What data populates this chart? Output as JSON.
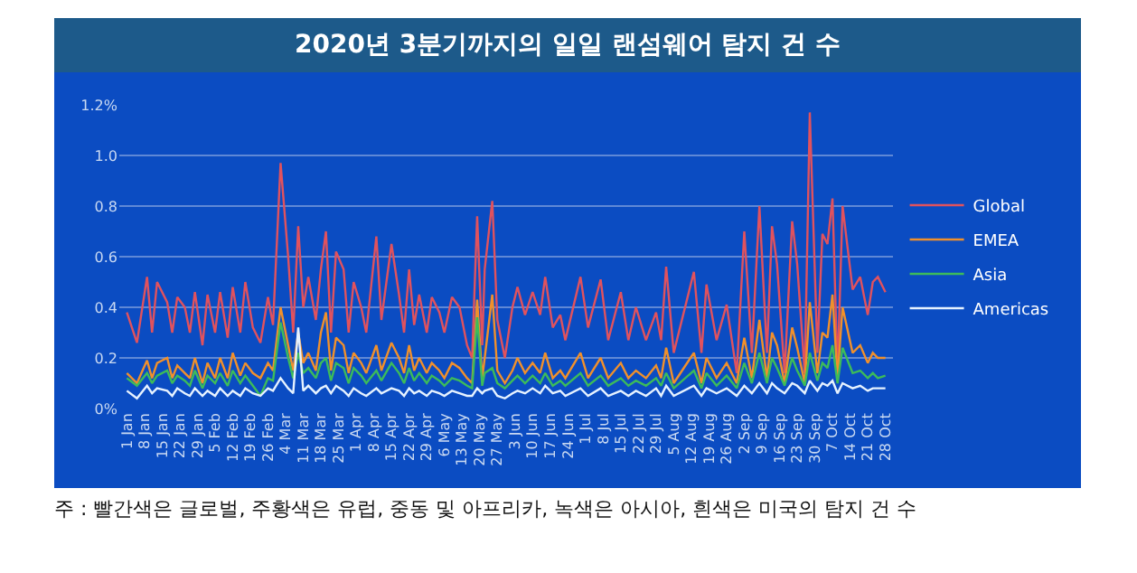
{
  "chart_data": {
    "type": "line",
    "title": "2020년 3분기까지의 일일 랜섬웨어 탐지 건 수",
    "annotations": [
      "주 : 빨간색은 글로벌, 주황색은 유럽, 중동 및 아프리카, 녹색은 아시아, 흰색은 미국의 탐지 건 수"
    ],
    "x": [
      "2020-01-01",
      "2020-01-05",
      "2020-01-09",
      "2020-01-11",
      "2020-01-13",
      "2020-01-17",
      "2020-01-19",
      "2020-01-21",
      "2020-01-24",
      "2020-01-26",
      "2020-01-28",
      "2020-01-31",
      "2020-02-02",
      "2020-02-05",
      "2020-02-07",
      "2020-02-10",
      "2020-02-12",
      "2020-02-15",
      "2020-02-17",
      "2020-02-20",
      "2020-02-23",
      "2020-02-26",
      "2020-02-28",
      "2020-03-02",
      "2020-03-05",
      "2020-03-07",
      "2020-03-09",
      "2020-03-11",
      "2020-03-13",
      "2020-03-16",
      "2020-03-18",
      "2020-03-20",
      "2020-03-22",
      "2020-03-24",
      "2020-03-27",
      "2020-03-29",
      "2020-03-31",
      "2020-04-03",
      "2020-04-05",
      "2020-04-09",
      "2020-04-11",
      "2020-04-15",
      "2020-04-18",
      "2020-04-20",
      "2020-04-22",
      "2020-04-24",
      "2020-04-26",
      "2020-04-29",
      "2020-05-01",
      "2020-05-04",
      "2020-05-06",
      "2020-05-09",
      "2020-05-12",
      "2020-05-15",
      "2020-05-17",
      "2020-05-19",
      "2020-05-21",
      "2020-05-22",
      "2020-05-25",
      "2020-05-27",
      "2020-05-30",
      "2020-06-02",
      "2020-06-04",
      "2020-06-07",
      "2020-06-10",
      "2020-06-13",
      "2020-06-15",
      "2020-06-18",
      "2020-06-21",
      "2020-06-23",
      "2020-06-29",
      "2020-07-02",
      "2020-07-07",
      "2020-07-10",
      "2020-07-15",
      "2020-07-18",
      "2020-07-21",
      "2020-07-25",
      "2020-07-29",
      "2020-07-31",
      "2020-08-02",
      "2020-08-05",
      "2020-08-13",
      "2020-08-16",
      "2020-08-18",
      "2020-08-22",
      "2020-08-26",
      "2020-08-30",
      "2020-09-02",
      "2020-09-05",
      "2020-09-08",
      "2020-09-11",
      "2020-09-13",
      "2020-09-15",
      "2020-09-18",
      "2020-09-21",
      "2020-09-23",
      "2020-09-26",
      "2020-09-28",
      "2020-10-01",
      "2020-10-03",
      "2020-10-05",
      "2020-10-07",
      "2020-10-09",
      "2020-10-11",
      "2020-10-15",
      "2020-10-18",
      "2020-10-21",
      "2020-10-23",
      "2020-10-25",
      "2020-10-28"
    ],
    "series": [
      {
        "name": "Global",
        "color": "#e0525e",
        "values": [
          0.38,
          0.26,
          0.52,
          0.3,
          0.5,
          0.42,
          0.3,
          0.44,
          0.4,
          0.3,
          0.46,
          0.25,
          0.45,
          0.3,
          0.46,
          0.28,
          0.48,
          0.3,
          0.5,
          0.32,
          0.26,
          0.44,
          0.33,
          0.97,
          0.6,
          0.3,
          0.72,
          0.4,
          0.52,
          0.35,
          0.55,
          0.7,
          0.3,
          0.62,
          0.55,
          0.3,
          0.5,
          0.4,
          0.3,
          0.68,
          0.35,
          0.65,
          0.45,
          0.3,
          0.55,
          0.33,
          0.45,
          0.3,
          0.44,
          0.38,
          0.3,
          0.44,
          0.4,
          0.25,
          0.2,
          0.76,
          0.25,
          0.55,
          0.82,
          0.35,
          0.2,
          0.4,
          0.48,
          0.37,
          0.46,
          0.37,
          0.52,
          0.32,
          0.37,
          0.27,
          0.52,
          0.32,
          0.51,
          0.27,
          0.46,
          0.27,
          0.4,
          0.27,
          0.38,
          0.27,
          0.56,
          0.22,
          0.54,
          0.22,
          0.49,
          0.27,
          0.41,
          0.14,
          0.7,
          0.22,
          0.8,
          0.22,
          0.72,
          0.57,
          0.14,
          0.74,
          0.57,
          0.14,
          1.17,
          0.22,
          0.69,
          0.65,
          0.83,
          0.14,
          0.8,
          0.47,
          0.52,
          0.37,
          0.5,
          0.52,
          0.46
        ]
      },
      {
        "name": "EMEA",
        "color": "#f0902c",
        "values": [
          0.14,
          0.1,
          0.19,
          0.12,
          0.18,
          0.2,
          0.12,
          0.17,
          0.14,
          0.12,
          0.2,
          0.1,
          0.18,
          0.12,
          0.2,
          0.12,
          0.22,
          0.13,
          0.18,
          0.14,
          0.12,
          0.18,
          0.15,
          0.4,
          0.25,
          0.15,
          0.3,
          0.18,
          0.22,
          0.15,
          0.3,
          0.38,
          0.15,
          0.28,
          0.25,
          0.14,
          0.22,
          0.18,
          0.14,
          0.25,
          0.15,
          0.26,
          0.2,
          0.14,
          0.25,
          0.15,
          0.2,
          0.14,
          0.18,
          0.15,
          0.12,
          0.18,
          0.16,
          0.12,
          0.1,
          0.43,
          0.12,
          0.2,
          0.45,
          0.15,
          0.1,
          0.15,
          0.2,
          0.14,
          0.18,
          0.14,
          0.22,
          0.12,
          0.15,
          0.12,
          0.22,
          0.12,
          0.2,
          0.12,
          0.18,
          0.12,
          0.15,
          0.12,
          0.17,
          0.12,
          0.24,
          0.1,
          0.22,
          0.1,
          0.2,
          0.12,
          0.18,
          0.1,
          0.28,
          0.12,
          0.35,
          0.12,
          0.3,
          0.25,
          0.1,
          0.32,
          0.24,
          0.1,
          0.42,
          0.14,
          0.3,
          0.28,
          0.45,
          0.12,
          0.4,
          0.22,
          0.25,
          0.18,
          0.22,
          0.2,
          0.2
        ]
      },
      {
        "name": "Asia",
        "color": "#3dbb5a",
        "values": [
          0.12,
          0.09,
          0.14,
          0.1,
          0.13,
          0.15,
          0.1,
          0.13,
          0.11,
          0.09,
          0.15,
          0.08,
          0.13,
          0.1,
          0.14,
          0.09,
          0.15,
          0.1,
          0.13,
          0.09,
          0.05,
          0.12,
          0.11,
          0.34,
          0.2,
          0.12,
          0.22,
          0.14,
          0.16,
          0.12,
          0.18,
          0.2,
          0.11,
          0.18,
          0.16,
          0.1,
          0.16,
          0.13,
          0.1,
          0.15,
          0.11,
          0.18,
          0.14,
          0.1,
          0.16,
          0.11,
          0.14,
          0.1,
          0.13,
          0.11,
          0.09,
          0.12,
          0.11,
          0.09,
          0.08,
          0.36,
          0.09,
          0.14,
          0.16,
          0.1,
          0.08,
          0.11,
          0.13,
          0.1,
          0.13,
          0.1,
          0.14,
          0.09,
          0.11,
          0.09,
          0.14,
          0.09,
          0.13,
          0.09,
          0.12,
          0.09,
          0.11,
          0.09,
          0.12,
          0.09,
          0.14,
          0.08,
          0.15,
          0.08,
          0.14,
          0.09,
          0.13,
          0.08,
          0.18,
          0.1,
          0.22,
          0.1,
          0.2,
          0.16,
          0.09,
          0.2,
          0.15,
          0.09,
          0.22,
          0.11,
          0.18,
          0.16,
          0.25,
          0.1,
          0.24,
          0.14,
          0.15,
          0.12,
          0.14,
          0.12,
          0.13
        ]
      },
      {
        "name": "Americas",
        "color": "#e6f2ff",
        "values": [
          0.07,
          0.04,
          0.09,
          0.06,
          0.08,
          0.07,
          0.05,
          0.08,
          0.06,
          0.05,
          0.08,
          0.05,
          0.07,
          0.05,
          0.08,
          0.05,
          0.07,
          0.05,
          0.08,
          0.06,
          0.05,
          0.08,
          0.07,
          0.12,
          0.08,
          0.06,
          0.32,
          0.07,
          0.09,
          0.06,
          0.08,
          0.09,
          0.06,
          0.09,
          0.07,
          0.05,
          0.08,
          0.06,
          0.05,
          0.08,
          0.06,
          0.08,
          0.07,
          0.05,
          0.08,
          0.06,
          0.07,
          0.05,
          0.07,
          0.06,
          0.05,
          0.07,
          0.06,
          0.05,
          0.05,
          0.08,
          0.06,
          0.07,
          0.08,
          0.05,
          0.04,
          0.06,
          0.07,
          0.06,
          0.08,
          0.06,
          0.09,
          0.06,
          0.07,
          0.05,
          0.08,
          0.05,
          0.08,
          0.05,
          0.07,
          0.05,
          0.07,
          0.05,
          0.08,
          0.05,
          0.09,
          0.05,
          0.09,
          0.05,
          0.08,
          0.06,
          0.08,
          0.05,
          0.09,
          0.06,
          0.1,
          0.06,
          0.1,
          0.08,
          0.06,
          0.1,
          0.09,
          0.06,
          0.11,
          0.07,
          0.1,
          0.09,
          0.11,
          0.06,
          0.1,
          0.08,
          0.09,
          0.07,
          0.08,
          0.08,
          0.08
        ]
      }
    ],
    "xlim": [
      "2019-12-29",
      "2020-10-31"
    ],
    "xticks": [
      {
        "value": "2020-01-01",
        "label": "1 Jan"
      },
      {
        "value": "2020-01-08",
        "label": "8 Jan"
      },
      {
        "value": "2020-01-15",
        "label": "15 Jan"
      },
      {
        "value": "2020-01-22",
        "label": "22 Jan"
      },
      {
        "value": "2020-01-29",
        "label": "29 Jan"
      },
      {
        "value": "2020-02-05",
        "label": "5 Feb"
      },
      {
        "value": "2020-02-12",
        "label": "12 Feb"
      },
      {
        "value": "2020-02-19",
        "label": "19 Feb"
      },
      {
        "value": "2020-02-26",
        "label": "26 Feb"
      },
      {
        "value": "2020-03-04",
        "label": "4 Mar"
      },
      {
        "value": "2020-03-11",
        "label": "11 Mar"
      },
      {
        "value": "2020-03-18",
        "label": "18 Mar"
      },
      {
        "value": "2020-03-25",
        "label": "25 Mar"
      },
      {
        "value": "2020-04-01",
        "label": "1 Apr"
      },
      {
        "value": "2020-04-08",
        "label": "8 Apr"
      },
      {
        "value": "2020-04-15",
        "label": "15 Apr"
      },
      {
        "value": "2020-04-22",
        "label": "22 Apr"
      },
      {
        "value": "2020-04-29",
        "label": "29 Apr"
      },
      {
        "value": "2020-05-06",
        "label": "6 May"
      },
      {
        "value": "2020-05-13",
        "label": "13 May"
      },
      {
        "value": "2020-05-20",
        "label": "20 May"
      },
      {
        "value": "2020-05-27",
        "label": "27 May"
      },
      {
        "value": "2020-06-03",
        "label": "3 Jun"
      },
      {
        "value": "2020-06-10",
        "label": "10 Jun"
      },
      {
        "value": "2020-06-17",
        "label": "17 Jun"
      },
      {
        "value": "2020-06-24",
        "label": "24 Jun"
      },
      {
        "value": "2020-07-01",
        "label": "1 Jul"
      },
      {
        "value": "2020-07-08",
        "label": "8 Jul"
      },
      {
        "value": "2020-07-15",
        "label": "15 Jul"
      },
      {
        "value": "2020-07-22",
        "label": "22 Jul"
      },
      {
        "value": "2020-07-29",
        "label": "29 Jul"
      },
      {
        "value": "2020-08-05",
        "label": "5 Aug"
      },
      {
        "value": "2020-08-12",
        "label": "12 Aug"
      },
      {
        "value": "2020-08-19",
        "label": "19 Aug"
      },
      {
        "value": "2020-08-26",
        "label": "26 Aug"
      },
      {
        "value": "2020-09-02",
        "label": "2 Sep"
      },
      {
        "value": "2020-09-09",
        "label": "9 Sep"
      },
      {
        "value": "2020-09-16",
        "label": "16 Sep"
      },
      {
        "value": "2020-09-23",
        "label": "23 Sep"
      },
      {
        "value": "2020-09-30",
        "label": "30 Sep"
      },
      {
        "value": "2020-10-07",
        "label": "7 Oct"
      },
      {
        "value": "2020-10-14",
        "label": "14 Oct"
      },
      {
        "value": "2020-10-21",
        "label": "21 Oct"
      },
      {
        "value": "2020-10-28",
        "label": "28 Oct"
      }
    ],
    "ylim": [
      0,
      1.2
    ],
    "yticks": [
      {
        "value": 0,
        "label": "0%"
      },
      0.2,
      0.4,
      0.6,
      0.8,
      {
        "value": 1,
        "label": "1.0"
      },
      {
        "value": 1.2,
        "label": "1.2%"
      }
    ],
    "grid": "y",
    "legend": "right"
  }
}
